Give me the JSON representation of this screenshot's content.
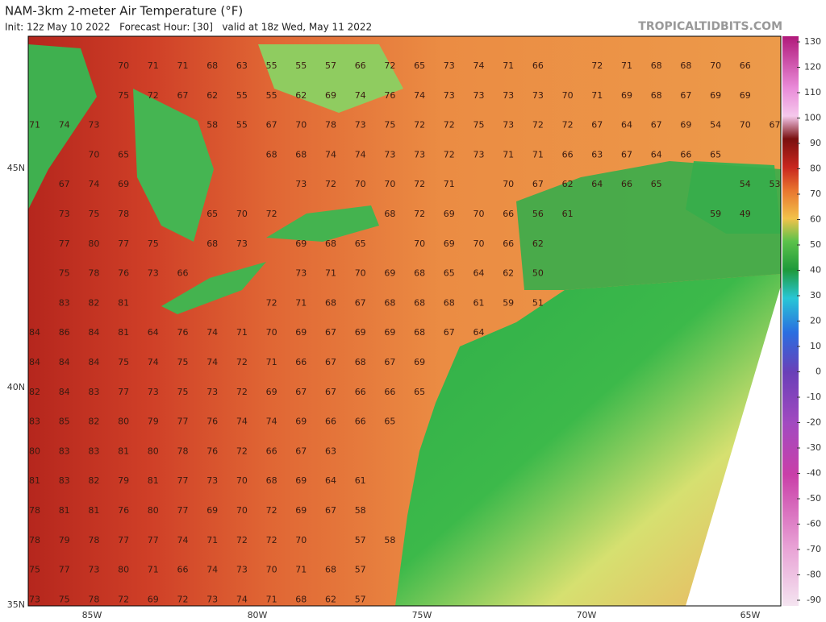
{
  "header": {
    "title": "NAM-3km 2-meter Air Temperature (°F)",
    "subtitle": "Init: 12z May 10 2022   Forecast Hour: [30]   valid at 18z Wed, May 11 2022",
    "source": "TROPICALTIDBITS.COM"
  },
  "map": {
    "lat_labels": [
      "45N",
      "40N",
      "35N"
    ],
    "lon_labels": [
      "85W",
      "80W",
      "75W",
      "70W",
      "65W"
    ],
    "values": [
      [
        null,
        null,
        null,
        70,
        71,
        71,
        68,
        63,
        55,
        55,
        57,
        66,
        72,
        65,
        73,
        74,
        71,
        66,
        null,
        72,
        71,
        68,
        68,
        70,
        66
      ],
      [
        null,
        null,
        null,
        75,
        72,
        67,
        62,
        55,
        55,
        62,
        69,
        74,
        76,
        74,
        73,
        73,
        73,
        73,
        70,
        71,
        69,
        68,
        67,
        69,
        69
      ],
      [
        71,
        74,
        73,
        null,
        null,
        null,
        58,
        55,
        67,
        70,
        78,
        73,
        75,
        72,
        72,
        75,
        73,
        72,
        72,
        67,
        64,
        67,
        69,
        54,
        70,
        67
      ],
      [
        null,
        null,
        70,
        65,
        null,
        null,
        null,
        null,
        68,
        68,
        74,
        74,
        73,
        73,
        72,
        73,
        71,
        71,
        66,
        63,
        67,
        64,
        66,
        65
      ],
      [
        null,
        67,
        74,
        69,
        null,
        null,
        null,
        null,
        null,
        73,
        72,
        70,
        70,
        72,
        71,
        null,
        70,
        67,
        62,
        64,
        66,
        65,
        null,
        null,
        54,
        53
      ],
      [
        null,
        73,
        75,
        78,
        null,
        null,
        65,
        70,
        72,
        null,
        null,
        null,
        68,
        72,
        69,
        70,
        66,
        56,
        61,
        null,
        null,
        null,
        null,
        59,
        49
      ],
      [
        null,
        77,
        80,
        77,
        75,
        null,
        68,
        73,
        null,
        69,
        68,
        65,
        null,
        70,
        69,
        70,
        66,
        62
      ],
      [
        null,
        75,
        78,
        76,
        73,
        66,
        null,
        null,
        null,
        73,
        71,
        70,
        69,
        68,
        65,
        64,
        62,
        50
      ],
      [
        null,
        83,
        82,
        81,
        null,
        null,
        null,
        null,
        72,
        71,
        68,
        67,
        68,
        68,
        68,
        61,
        59,
        51
      ],
      [
        84,
        86,
        84,
        81,
        64,
        76,
        74,
        71,
        70,
        69,
        67,
        69,
        69,
        68,
        67,
        64
      ],
      [
        84,
        84,
        84,
        75,
        74,
        75,
        74,
        72,
        71,
        66,
        67,
        68,
        67,
        69
      ],
      [
        82,
        84,
        83,
        77,
        73,
        75,
        73,
        72,
        69,
        67,
        67,
        66,
        66,
        65
      ],
      [
        83,
        85,
        82,
        80,
        79,
        77,
        76,
        74,
        74,
        69,
        66,
        66,
        65
      ],
      [
        80,
        83,
        83,
        81,
        80,
        78,
        76,
        72,
        66,
        67,
        63
      ],
      [
        81,
        83,
        82,
        79,
        81,
        77,
        73,
        70,
        68,
        69,
        64,
        61
      ],
      [
        78,
        81,
        81,
        76,
        80,
        77,
        69,
        70,
        72,
        69,
        67,
        58
      ],
      [
        78,
        79,
        78,
        77,
        77,
        74,
        71,
        72,
        72,
        70,
        null,
        57,
        58
      ],
      [
        75,
        77,
        73,
        80,
        71,
        66,
        74,
        73,
        70,
        71,
        68,
        57
      ],
      [
        73,
        75,
        78,
        72,
        69,
        72,
        73,
        74,
        71,
        68,
        62,
        57
      ]
    ]
  },
  "colorbar": {
    "ticks": [
      130,
      120,
      110,
      100,
      90,
      80,
      70,
      60,
      50,
      40,
      30,
      20,
      10,
      0,
      -10,
      -20,
      -30,
      -40,
      -50,
      -60,
      -70,
      -80,
      -90
    ]
  }
}
